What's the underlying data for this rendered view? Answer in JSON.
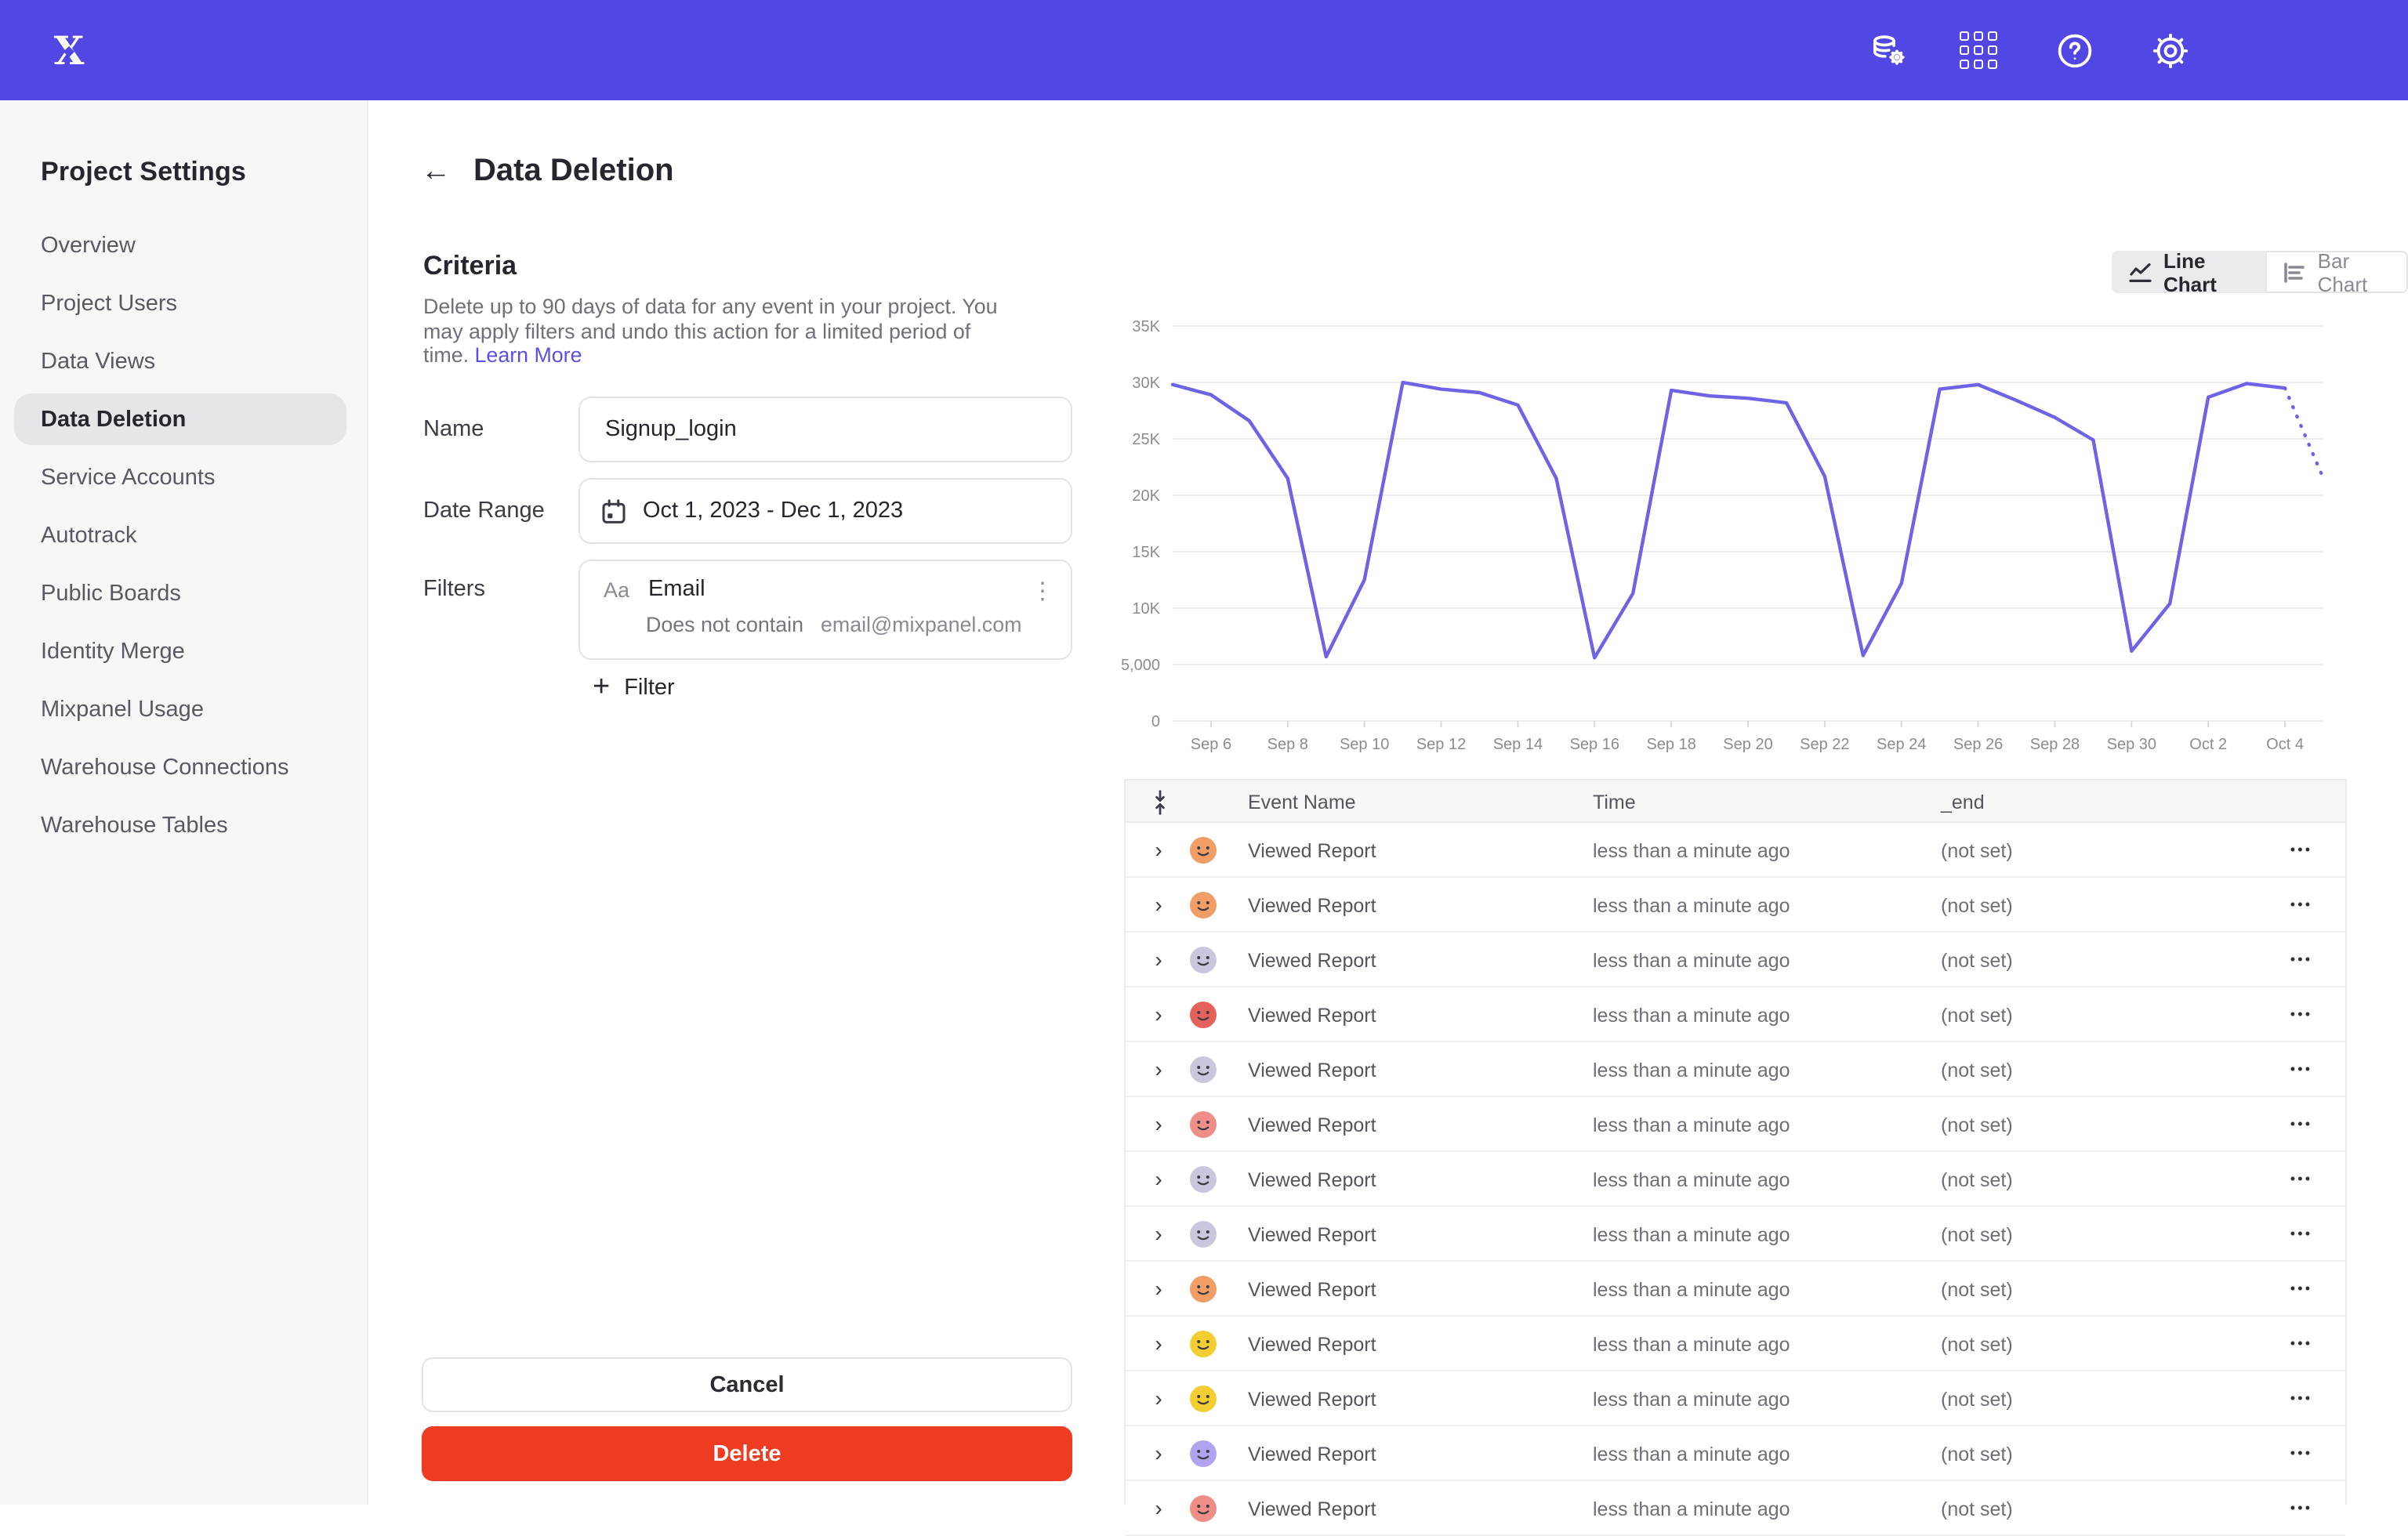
{
  "colors": {
    "topbar": "#5246E5",
    "accent_link": "#5B4FE9",
    "delete_button": "#EE3B22",
    "chart_line": "#6E63E6",
    "sidebar_bg": "#F7F7F8",
    "selected_item_bg": "#E6E6E9"
  },
  "topbar": {
    "logo_letter": "X",
    "icons": [
      "data-management-icon",
      "apps-grid-icon",
      "help-icon",
      "settings-gear-icon"
    ]
  },
  "sidebar": {
    "title": "Project Settings",
    "items": [
      {
        "label": "Overview",
        "active": false
      },
      {
        "label": "Project Users",
        "active": false
      },
      {
        "label": "Data Views",
        "active": false
      },
      {
        "label": "Data Deletion",
        "active": true
      },
      {
        "label": "Service Accounts",
        "active": false
      },
      {
        "label": "Autotrack",
        "active": false
      },
      {
        "label": "Public Boards",
        "active": false
      },
      {
        "label": "Identity Merge",
        "active": false
      },
      {
        "label": "Mixpanel Usage",
        "active": false
      },
      {
        "label": "Warehouse Connections",
        "active": false
      },
      {
        "label": "Warehouse Tables",
        "active": false
      }
    ]
  },
  "page": {
    "title": "Data Deletion"
  },
  "criteria": {
    "heading": "Criteria",
    "description": "Delete up to 90 days of data for any event in your project. You may apply filters and undo this action for a limited period of time.",
    "learn_more": "Learn More"
  },
  "form": {
    "name_label": "Name",
    "name_value": "Signup_login",
    "date_label": "Date Range",
    "date_value": "Oct 1, 2023 - Dec 1, 2023",
    "filters_label": "Filters",
    "filter": {
      "type_badge": "Aa",
      "property": "Email",
      "operator": "Does not contain",
      "value": "email@mixpanel.com"
    },
    "add_filter_label": "Filter"
  },
  "actions": {
    "cancel": "Cancel",
    "delete": "Delete"
  },
  "chart_toggle": {
    "line_label": "Line Chart",
    "bar_label": "Bar Chart",
    "selected": "Line Chart"
  },
  "icons": {
    "back": "←",
    "kebab": "⋮",
    "chevron": "›",
    "plus": "+",
    "row_menu": "•••"
  },
  "chart_data": {
    "type": "line",
    "title": "",
    "xlabel": "",
    "ylabel": "",
    "legend": "none",
    "grid": true,
    "line_color": "#6E63E6",
    "ylim": [
      0,
      35000
    ],
    "y_ticks": [
      "0",
      "5,000",
      "10K",
      "15K",
      "20K",
      "25K",
      "30K",
      "35K"
    ],
    "x": [
      "Sep 5",
      "Sep 6",
      "Sep 7",
      "Sep 8",
      "Sep 9",
      "Sep 10",
      "Sep 11",
      "Sep 12",
      "Sep 13",
      "Sep 14",
      "Sep 15",
      "Sep 16",
      "Sep 17",
      "Sep 18",
      "Sep 19",
      "Sep 20",
      "Sep 21",
      "Sep 22",
      "Sep 23",
      "Sep 24",
      "Sep 25",
      "Sep 26",
      "Sep 27",
      "Sep 28",
      "Sep 29",
      "Sep 30",
      "Oct 1",
      "Oct 2",
      "Oct 3",
      "Oct 4",
      "Oct 5"
    ],
    "values": [
      29800,
      28900,
      26600,
      21500,
      5700,
      12500,
      30000,
      29400,
      29100,
      28000,
      21500,
      5600,
      11300,
      29300,
      28800,
      28600,
      28200,
      21700,
      5800,
      12200,
      29400,
      29800,
      28400,
      26900,
      24900,
      6200,
      10400,
      28700,
      29900,
      29500,
      21500
    ],
    "dashed_from_index": 29,
    "x_tick_every": 2
  },
  "table": {
    "columns": [
      "Event Name",
      "Time",
      "_end"
    ],
    "rows": [
      {
        "event": "Viewed Report",
        "time": "less than a minute ago",
        "end": "(not set)",
        "avatar_color": "#F09E66"
      },
      {
        "event": "Viewed Report",
        "time": "less than a minute ago",
        "end": "(not set)",
        "avatar_color": "#F09E66"
      },
      {
        "event": "Viewed Report",
        "time": "less than a minute ago",
        "end": "(not set)",
        "avatar_color": "#C9C7DD"
      },
      {
        "event": "Viewed Report",
        "time": "less than a minute ago",
        "end": "(not set)",
        "avatar_color": "#E4625B"
      },
      {
        "event": "Viewed Report",
        "time": "less than a minute ago",
        "end": "(not set)",
        "avatar_color": "#C9C7DD"
      },
      {
        "event": "Viewed Report",
        "time": "less than a minute ago",
        "end": "(not set)",
        "avatar_color": "#EE8E86"
      },
      {
        "event": "Viewed Report",
        "time": "less than a minute ago",
        "end": "(not set)",
        "avatar_color": "#C9C7DD"
      },
      {
        "event": "Viewed Report",
        "time": "less than a minute ago",
        "end": "(not set)",
        "avatar_color": "#C9C7DD"
      },
      {
        "event": "Viewed Report",
        "time": "less than a minute ago",
        "end": "(not set)",
        "avatar_color": "#F09E66"
      },
      {
        "event": "Viewed Report",
        "time": "less than a minute ago",
        "end": "(not set)",
        "avatar_color": "#F2CE33"
      },
      {
        "event": "Viewed Report",
        "time": "less than a minute ago",
        "end": "(not set)",
        "avatar_color": "#F2CE33"
      },
      {
        "event": "Viewed Report",
        "time": "less than a minute ago",
        "end": "(not set)",
        "avatar_color": "#B2A2EF"
      },
      {
        "event": "Viewed Report",
        "time": "less than a minute ago",
        "end": "(not set)",
        "avatar_color": "#EE8E86"
      }
    ]
  }
}
